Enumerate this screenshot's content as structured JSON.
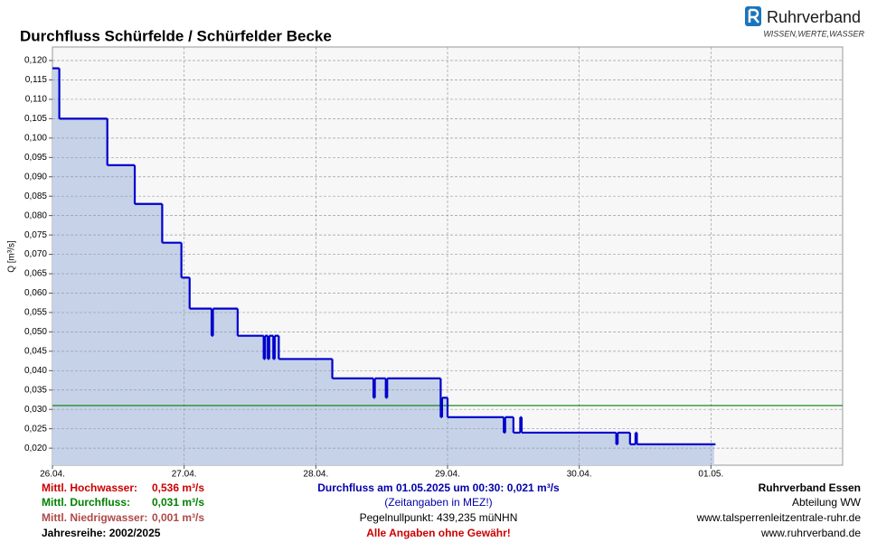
{
  "chart_data": {
    "type": "step",
    "title": "Durchfluss Schürfelde / Schürfelder Becke",
    "y_label": "Q [m³/s]",
    "logo": {
      "name": "Ruhrverband",
      "tagline": "WISSEN,WERTE,WASSER"
    },
    "xlim": [
      "2025-04-26 00:00",
      "2025-05-02 00:00"
    ],
    "xticks": [
      {
        "value": "2025-04-26 00:00",
        "label": "26.04."
      },
      {
        "value": "2025-04-27 00:00",
        "label": "27.04."
      },
      {
        "value": "2025-04-28 00:00",
        "label": "28.04."
      },
      {
        "value": "2025-04-29 00:00",
        "label": "29.04."
      },
      {
        "value": "2025-04-30 00:00",
        "label": "30.04."
      },
      {
        "value": "2025-05-01 00:00",
        "label": "01.05."
      }
    ],
    "ylim": [
      0.0156,
      0.1235
    ],
    "yticks": [
      {
        "value": 0.02,
        "label": "0,020"
      },
      {
        "value": 0.025,
        "label": "0,025"
      },
      {
        "value": 0.03,
        "label": "0,030"
      },
      {
        "value": 0.035,
        "label": "0,035"
      },
      {
        "value": 0.04,
        "label": "0,040"
      },
      {
        "value": 0.045,
        "label": "0,045"
      },
      {
        "value": 0.05,
        "label": "0,050"
      },
      {
        "value": 0.055,
        "label": "0,055"
      },
      {
        "value": 0.06,
        "label": "0,060"
      },
      {
        "value": 0.065,
        "label": "0,065"
      },
      {
        "value": 0.07,
        "label": "0,070"
      },
      {
        "value": 0.075,
        "label": "0,075"
      },
      {
        "value": 0.08,
        "label": "0,080"
      },
      {
        "value": 0.085,
        "label": "0,085"
      },
      {
        "value": 0.09,
        "label": "0,090"
      },
      {
        "value": 0.095,
        "label": "0,095"
      },
      {
        "value": 0.1,
        "label": "0,100"
      },
      {
        "value": 0.105,
        "label": "0,105"
      },
      {
        "value": 0.11,
        "label": "0,110"
      },
      {
        "value": 0.115,
        "label": "0,115"
      },
      {
        "value": 0.12,
        "label": "0,120"
      }
    ],
    "grid": true,
    "line_color": "#0000cc",
    "area_color": "#c6d2e8",
    "x": [
      "2025-04-26 00:00",
      "2025-04-26 01:15",
      "2025-04-26 10:00",
      "2025-04-26 15:00",
      "2025-04-26 20:00",
      "2025-04-26 23:30",
      "2025-04-27 01:00",
      "2025-04-27 05:00",
      "2025-04-27 05:15",
      "2025-04-27 09:45",
      "2025-04-27 14:30",
      "2025-04-27 14:45",
      "2025-04-27 15:15",
      "2025-04-27 15:30",
      "2025-04-27 16:15",
      "2025-04-27 16:30",
      "2025-04-27 17:15",
      "2025-04-28 03:00",
      "2025-04-28 10:30",
      "2025-04-28 10:45",
      "2025-04-28 12:45",
      "2025-04-28 13:00",
      "2025-04-28 22:45",
      "2025-04-28 23:00",
      "2025-04-29 00:00",
      "2025-04-29 10:15",
      "2025-04-29 10:30",
      "2025-04-29 12:00",
      "2025-04-29 13:15",
      "2025-04-29 13:30",
      "2025-04-30 06:45",
      "2025-04-30 07:00",
      "2025-04-30 09:15",
      "2025-04-30 10:15",
      "2025-04-30 10:30",
      "2025-05-01 00:30"
    ],
    "values": [
      0.118,
      0.105,
      0.093,
      0.083,
      0.073,
      0.064,
      0.056,
      0.049,
      0.056,
      0.049,
      0.043,
      0.049,
      0.043,
      0.049,
      0.043,
      0.049,
      0.043,
      0.038,
      0.033,
      0.038,
      0.033,
      0.038,
      0.028,
      0.033,
      0.028,
      0.024,
      0.028,
      0.024,
      0.028,
      0.024,
      0.021,
      0.024,
      0.021,
      0.024,
      0.021,
      0.021
    ],
    "footer_left": [
      {
        "label": "Mittl. Hochwasser:",
        "value": 0.536,
        "value_label": "0,536 m³/s",
        "color": "#cc0000"
      },
      {
        "label": "Mittl. Durchfluss:",
        "value": 0.031,
        "value_label": "0,031 m³/s",
        "color": "#008000",
        "reference_line": true
      },
      {
        "label": "Mittl. Niedrigwasser:",
        "value": 0.001,
        "value_label": "0,001 m³/s",
        "color": "#b04848"
      },
      {
        "label": "Jahresreihe: 2002/2025",
        "color": "#000000"
      }
    ],
    "footer_center": [
      {
        "text": "Durchfluss am 01.05.2025 um 00:30: 0,021 m³/s",
        "color": "#0000aa",
        "bold": true
      },
      {
        "text": "(Zeitangaben in MEZ!)",
        "color": "#0000aa",
        "bold": false
      },
      {
        "text": "Pegelnullpunkt:   439,235 müNHN",
        "color": "#000000",
        "bold": false
      },
      {
        "text": "Alle Angaben ohne Gewähr!",
        "color": "#cc0000",
        "bold": true
      }
    ],
    "footer_right": [
      {
        "text": "Ruhrverband Essen",
        "bold": true
      },
      {
        "text": "Abteilung WW",
        "bold": false
      },
      {
        "text": "www.talsperrenleitzentrale-ruhr.de",
        "bold": false
      },
      {
        "text": "www.ruhrverband.de",
        "bold": false
      }
    ]
  }
}
